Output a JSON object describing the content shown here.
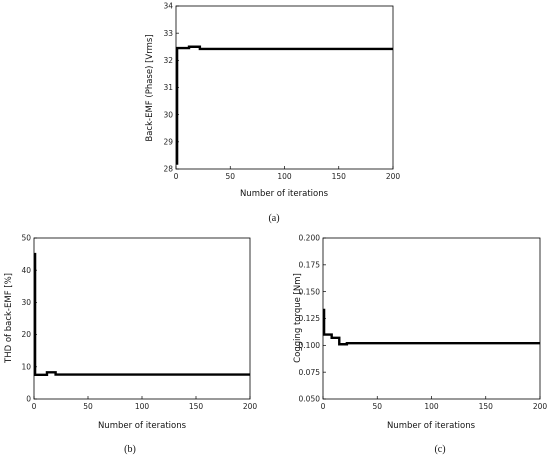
{
  "captions": {
    "a": "(a)",
    "b": "(b)",
    "c": "(c)"
  },
  "chart_data": [
    {
      "panel": "a",
      "type": "line",
      "xlabel": "Number of iterations",
      "ylabel": "Back-EMF (Phase) [Vrms]",
      "xlim": [
        0,
        200
      ],
      "ylim": [
        28,
        34
      ],
      "xticks": [
        0,
        50,
        100,
        150,
        200
      ],
      "yticks": [
        28,
        29,
        30,
        31,
        32,
        33,
        34
      ],
      "grid": false,
      "series": [
        {
          "x": [
            0,
            1,
            1,
            12,
            12,
            22,
            22,
            200
          ],
          "y": [
            28.2,
            28.2,
            32.45,
            32.45,
            32.5,
            32.5,
            32.42,
            32.42
          ]
        }
      ]
    },
    {
      "panel": "b",
      "type": "line",
      "xlabel": "Number of iterations",
      "ylabel": "THD of back-EMF [%]",
      "xlim": [
        0,
        200
      ],
      "ylim": [
        0,
        50
      ],
      "xticks": [
        0,
        50,
        100,
        150,
        200
      ],
      "yticks": [
        0,
        10,
        20,
        30,
        40,
        50
      ],
      "grid": false,
      "series": [
        {
          "x": [
            0,
            1,
            1,
            12,
            12,
            20,
            20,
            200
          ],
          "y": [
            45,
            45,
            7.5,
            7.5,
            8.3,
            8.3,
            7.6,
            7.6
          ]
        }
      ]
    },
    {
      "panel": "c",
      "type": "line",
      "xlabel": "Number of iterations",
      "ylabel": "Cogging torque [Nm]",
      "xlim": [
        0,
        200
      ],
      "ylim": [
        0.05,
        0.2
      ],
      "xticks": [
        0,
        50,
        100,
        150,
        200
      ],
      "yticks": [
        0.05,
        0.075,
        0.1,
        0.125,
        0.15,
        0.175,
        0.2
      ],
      "ytick_labels": [
        "0.050",
        "0.075",
        "0.100",
        "0.125",
        "0.150",
        "0.175",
        "0.200"
      ],
      "grid": false,
      "series": [
        {
          "x": [
            0,
            1,
            1,
            8,
            8,
            15,
            15,
            22,
            22,
            200
          ],
          "y": [
            0.133,
            0.133,
            0.11,
            0.11,
            0.107,
            0.107,
            0.101,
            0.101,
            0.102,
            0.102
          ]
        }
      ]
    }
  ]
}
